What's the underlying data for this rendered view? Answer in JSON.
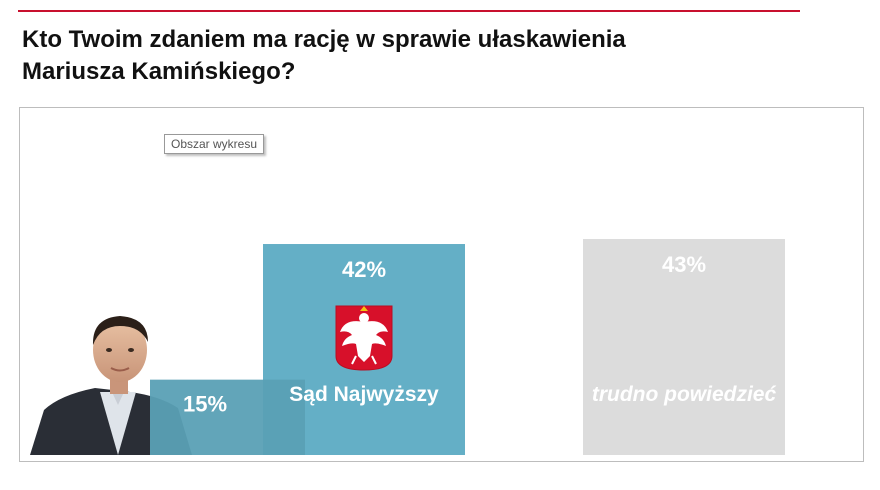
{
  "header": {
    "title_line1": "Kto Twoim zdaniem ma rację w sprawie ułaskawienia",
    "title_line2": "Mariusza Kamińskiego?"
  },
  "tooltip": {
    "text": "Obszar wykresu"
  },
  "colors": {
    "accent_rule": "#c8102e",
    "bar_president": "#5aa0b5",
    "bar_court": "#64afc6",
    "bar_unsure": "#dcdcdc",
    "label_text": "#ffffff"
  },
  "chart_data": {
    "type": "bar",
    "categories": [
      "",
      "Sąd Najwyższy",
      "trudno powiedzieć"
    ],
    "values": [
      15,
      42,
      43
    ],
    "value_labels": [
      "15%",
      "42%",
      "43%"
    ],
    "ylim": [
      0,
      43
    ],
    "grid": false,
    "legend": "none",
    "icons": [
      "portrait-photo",
      "polish-eagle-emblem",
      ""
    ]
  }
}
